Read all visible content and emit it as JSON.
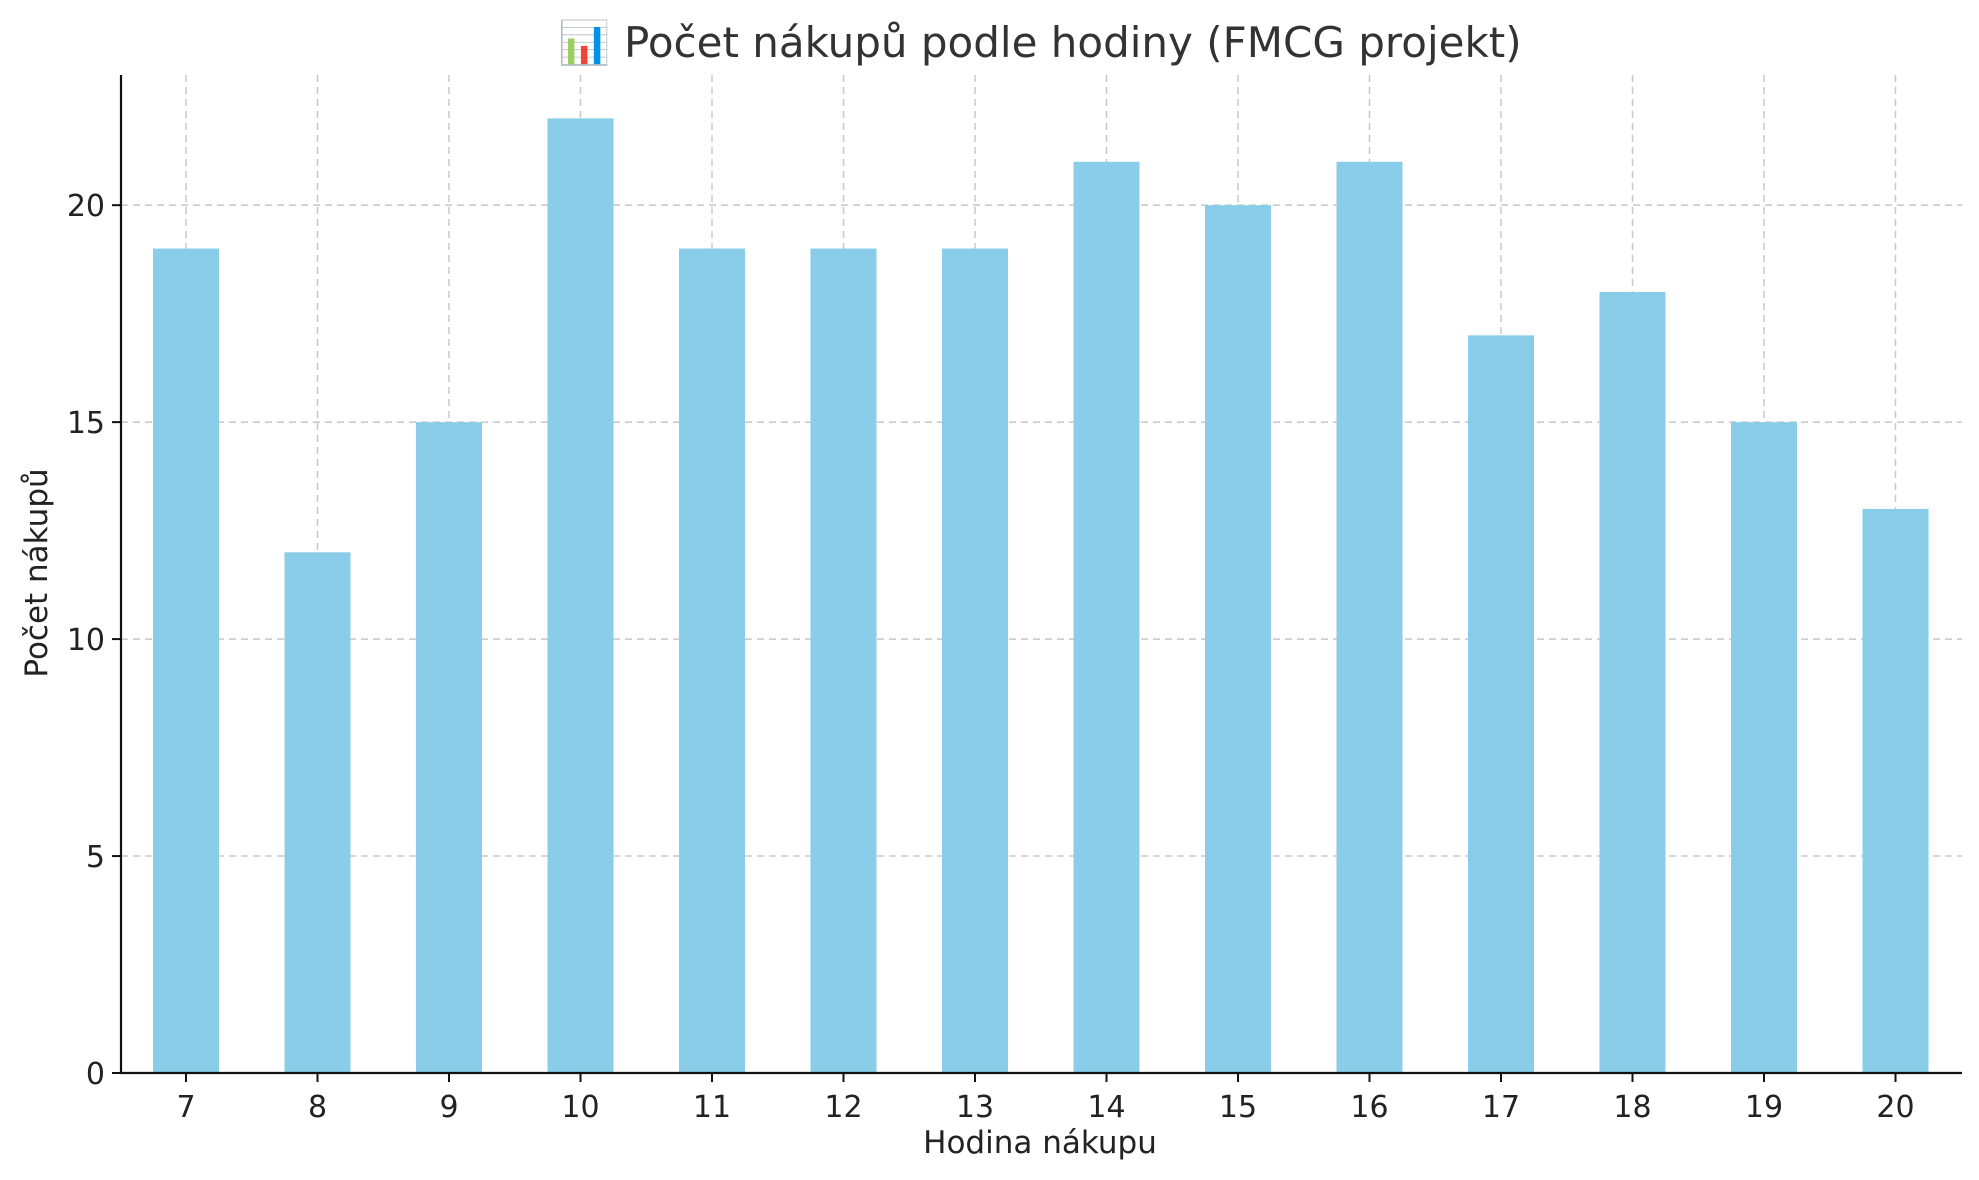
{
  "chart_data": {
    "type": "bar",
    "title": "📊 Počet nákupů podle hodiny (FMCG projekt)",
    "xlabel": "Hodina nákupu",
    "ylabel": "Počet nákupů",
    "categories": [
      "7",
      "8",
      "9",
      "10",
      "11",
      "12",
      "13",
      "14",
      "15",
      "16",
      "17",
      "18",
      "19",
      "20"
    ],
    "values": [
      19,
      12,
      15,
      22,
      19,
      19,
      19,
      21,
      20,
      21,
      17,
      18,
      15,
      13
    ],
    "ylim": [
      0,
      23
    ],
    "yticks": [
      0,
      5,
      10,
      15,
      20
    ],
    "grid": true,
    "bar_color": "#89CDE9"
  }
}
